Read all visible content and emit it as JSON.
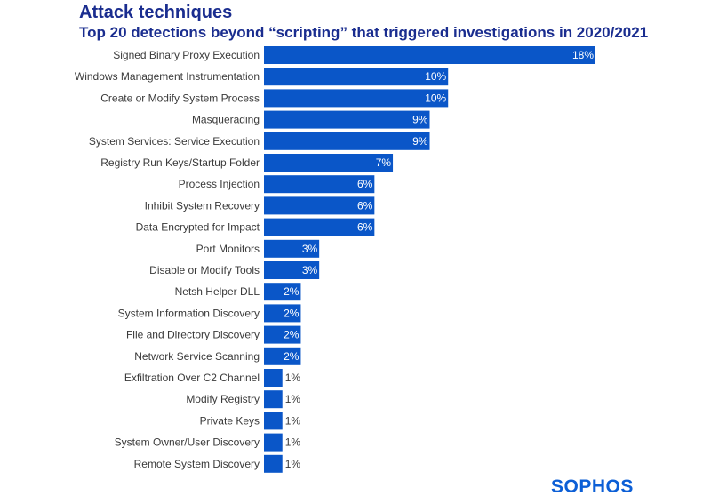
{
  "chart_data": {
    "type": "bar",
    "orientation": "horizontal",
    "title": "Attack techniques",
    "subtitle": "Top 20 detections beyond “scripting” that triggered investigations in 2020/2021",
    "xlabel": "",
    "ylabel": "",
    "xlim": [
      0,
      18
    ],
    "grid": false,
    "bar_color": "#0a56c8",
    "categories": [
      "Signed Binary Proxy Execution",
      "Windows Management Instrumentation",
      "Create or Modify System Process",
      "Masquerading",
      "System Services: Service Execution",
      "Registry Run Keys/Startup Folder",
      "Process Injection",
      "Inhibit System Recovery",
      "Data Encrypted for Impact",
      "Port Monitors",
      "Disable or Modify Tools",
      "Netsh Helper DLL",
      "System Information Discovery",
      "File and Directory Discovery",
      "Network Service Scanning",
      "Exfiltration Over C2 Channel",
      "Modify Registry",
      "Private Keys",
      "System Owner/User Discovery",
      "Remote System Discovery"
    ],
    "values": [
      18,
      10,
      10,
      9,
      9,
      7,
      6,
      6,
      6,
      3,
      3,
      2,
      2,
      2,
      2,
      1,
      1,
      1,
      1,
      1
    ],
    "value_labels": [
      "18%",
      "10%",
      "10%",
      "9%",
      "9%",
      "7%",
      "6%",
      "6%",
      "6%",
      "3%",
      "3%",
      "2%",
      "2%",
      "2%",
      "2%",
      "1%",
      "1%",
      "1%",
      "1%",
      "1%"
    ]
  },
  "brand": {
    "logo_text": "SOPHOS",
    "logo_color": "#0c5fd6"
  }
}
